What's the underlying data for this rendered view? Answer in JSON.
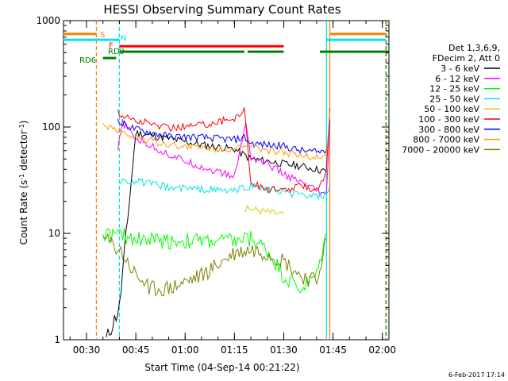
{
  "chart_data": {
    "type": "line",
    "title": "HESSI Observing Summary Count Rates",
    "xlabel": "Start Time (04-Sep-14 00:21:22)",
    "ylabel_parts": [
      "Count Rate (s",
      "-1",
      " detector",
      "-1",
      ")"
    ],
    "y_scale": "log",
    "ylim": [
      1,
      1000
    ],
    "y_ticks": [
      1,
      10,
      100,
      1000
    ],
    "y_tick_labels": [
      "1",
      "10",
      "100",
      "1000"
    ],
    "xlim_minutes": [
      23,
      122
    ],
    "x_ticks_minutes": [
      30,
      45,
      60,
      75,
      90,
      105,
      120
    ],
    "x_tick_labels": [
      "00:30",
      "00:45",
      "01:00",
      "01:15",
      "01:30",
      "01:45",
      "02:00"
    ],
    "legend_header": [
      "Det 1,3,6,9,",
      "FDecim 2, Att 0"
    ],
    "legend_position": "right",
    "timestamp": "6-Feb-2017 17:14",
    "flags": [
      {
        "label": "S",
        "color": "#ff7f00",
        "segments": [
          [
            23,
            33
          ],
          [
            104,
            121
          ]
        ],
        "level": 750
      },
      {
        "label": "N",
        "color": "#00e5e5",
        "segments": [
          [
            23,
            40
          ],
          [
            103,
            121
          ]
        ],
        "level": 660
      },
      {
        "label": "F",
        "color": "#ff0000",
        "segments": [
          [
            40,
            90
          ]
        ],
        "level": 575
      },
      {
        "label": "RD6",
        "color": "#008000",
        "segments": [
          [
            35,
            39
          ]
        ],
        "level": 445
      },
      {
        "label": "RD9",
        "color": "#008000",
        "segments": [
          [
            40,
            78
          ],
          [
            79,
            90
          ],
          [
            101,
            122
          ]
        ],
        "level": 510
      }
    ],
    "vlines": [
      {
        "x": 33,
        "color": "#ff7f00",
        "style": "dashed"
      },
      {
        "x": 40,
        "color": "#00e5e5",
        "style": "dashed"
      },
      {
        "x": 103,
        "color": "#00e5e5",
        "style": "solid"
      },
      {
        "x": 104,
        "color": "#ff7f00",
        "style": "solid"
      },
      {
        "x": 121,
        "color": "#ff7f00",
        "style": "dashed"
      },
      {
        "x": 121.3,
        "color": "#00e5e5",
        "style": "dashed"
      }
    ],
    "series": [
      {
        "name": "3 - 6 keV",
        "color": "#000000",
        "x": [
          36,
          40,
          45,
          55,
          65,
          75,
          80,
          85,
          90,
          95,
          100,
          103
        ],
        "values": [
          1,
          2,
          88,
          78,
          68,
          62,
          50,
          48,
          45,
          43,
          40,
          38
        ]
      },
      {
        "name": "6 - 12 keV",
        "color": "#ff00ff",
        "x": [
          39.5,
          41,
          45,
          55,
          65,
          75,
          78.5,
          80,
          85,
          90,
          95,
          100,
          103,
          104
        ],
        "values": [
          60,
          110,
          78,
          55,
          42,
          34,
          110,
          52,
          45,
          36,
          30,
          25,
          22,
          120
        ]
      },
      {
        "name": "12 - 25 keV",
        "color": "#00ff00",
        "x": [
          35,
          40,
          45,
          55,
          65,
          75,
          80,
          85,
          90,
          95,
          100,
          103
        ],
        "values": [
          10,
          9.5,
          9,
          8.5,
          8.5,
          8.5,
          9,
          7,
          4,
          3,
          4,
          10
        ]
      },
      {
        "name": "25 - 50 keV",
        "color": "#00e5e5",
        "x": [
          40,
          45,
          55,
          65,
          75,
          80,
          85,
          90,
          95,
          100,
          103,
          104
        ],
        "values": [
          31,
          31,
          27,
          26,
          25,
          28,
          26,
          24,
          23,
          22,
          23,
          28
        ]
      },
      {
        "name": "50 - 100 keV",
        "color": "#d0d000",
        "x": [
          78,
          80,
          85,
          90
        ],
        "values": [
          17,
          17,
          16,
          15
        ]
      },
      {
        "name": "100 - 300 keV",
        "color": "#ff0000",
        "x": [
          39.5,
          45,
          55,
          65,
          75,
          78,
          80,
          85,
          90,
          95,
          100,
          103,
          104
        ],
        "values": [
          135,
          115,
          98,
          105,
          120,
          150,
          30,
          26,
          25,
          28,
          26,
          38,
          150
        ]
      },
      {
        "name": "300 - 800 keV",
        "color": "#0000ff",
        "x": [
          39.5,
          45,
          55,
          65,
          75,
          78,
          80,
          85,
          90,
          95,
          100,
          103,
          104
        ],
        "values": [
          112,
          95,
          82,
          80,
          76,
          80,
          70,
          68,
          66,
          60,
          58,
          60,
          115
        ]
      },
      {
        "name": "800 - 7000 keV",
        "color": "#ff9900",
        "x": [
          35,
          40,
          45,
          55,
          65,
          75,
          80,
          85,
          90,
          95,
          100,
          103,
          104
        ],
        "values": [
          105,
          92,
          80,
          68,
          63,
          62,
          64,
          60,
          58,
          55,
          52,
          55,
          140
        ]
      },
      {
        "name": "7000 - 20000 keV",
        "color": "#808000",
        "x": [
          35,
          40,
          45,
          50,
          55,
          65,
          75,
          80,
          85,
          90,
          95,
          100,
          103
        ],
        "values": [
          9,
          7,
          4,
          3,
          3,
          4,
          6.5,
          7,
          6.5,
          5.5,
          4,
          3.5,
          9
        ]
      }
    ]
  }
}
